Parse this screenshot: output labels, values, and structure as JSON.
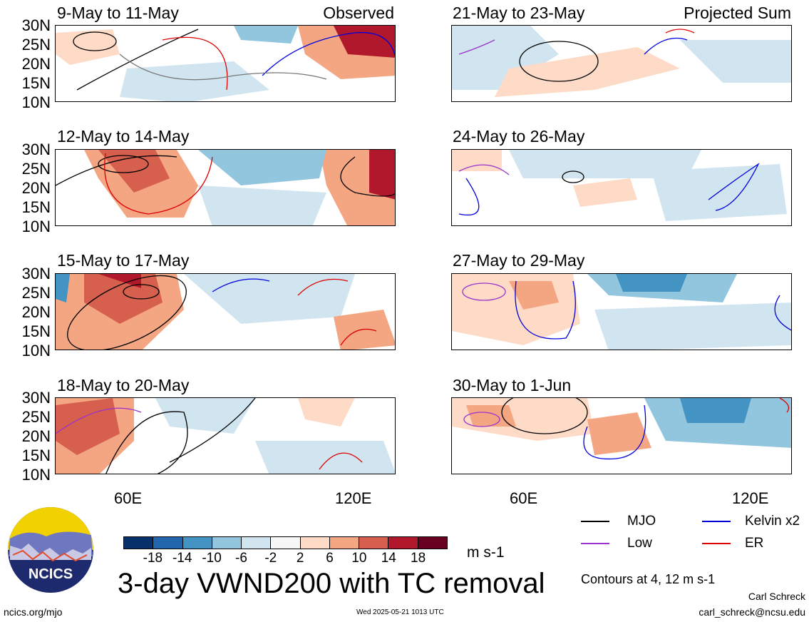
{
  "panels": [
    {
      "title": "9-May to 11-May",
      "tag": "Observed"
    },
    {
      "title": "12-May to 14-May",
      "tag": ""
    },
    {
      "title": "15-May to 17-May",
      "tag": ""
    },
    {
      "title": "18-May to 20-May",
      "tag": ""
    },
    {
      "title": "21-May to 23-May",
      "tag": "Projected Sum"
    },
    {
      "title": "24-May to 26-May",
      "tag": ""
    },
    {
      "title": "27-May to 29-May",
      "tag": ""
    },
    {
      "title": "30-May to 1-Jun",
      "tag": ""
    }
  ],
  "lat_labels": [
    "30N",
    "25N",
    "20N",
    "15N",
    "10N"
  ],
  "lon_labels": [
    "60E",
    "120E"
  ],
  "colorbar": {
    "colors": [
      "#08306b",
      "#2166ac",
      "#4393c3",
      "#92c5de",
      "#d1e5f0",
      "#f7f7f7",
      "#fddbc7",
      "#f4a582",
      "#d6604d",
      "#b2182b",
      "#67001f"
    ],
    "ticks": [
      "-18",
      "-14",
      "-10",
      "-6",
      "-2",
      "2",
      "6",
      "10",
      "14",
      "18"
    ],
    "units": "m s-1"
  },
  "legend": {
    "mjo": {
      "label": "MJO",
      "color": "#000000"
    },
    "low": {
      "label": "Low",
      "color": "#9933cc"
    },
    "kelvin": {
      "label": "Kelvin x2",
      "color": "#0000dd"
    },
    "er": {
      "label": "ER",
      "color": "#dd0000"
    },
    "contours": "Contours at 4, 12 m s-1"
  },
  "main_title": "3-day VWND200 with TC removal",
  "logo_text": "NCICS",
  "footer": {
    "url": "ncics.org/mjo",
    "timestamp": "Wed 2025-05-21 1013 UTC",
    "author": "Carl Schreck",
    "email": "carl_schreck@ncsu.edu"
  }
}
